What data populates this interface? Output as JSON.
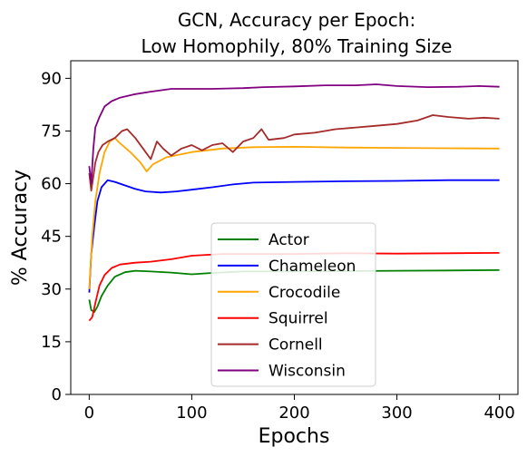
{
  "chart_data": {
    "type": "line",
    "title": "GCN, Accuracy per Epoch:",
    "subtitle": "Low Homophily, 80% Training Size",
    "xlabel": "Epochs",
    "ylabel": "% Accuracy",
    "xlim": [
      -18,
      418
    ],
    "ylim": [
      0,
      95
    ],
    "xticks": [
      0,
      100,
      200,
      300,
      400
    ],
    "yticks": [
      0,
      15,
      30,
      45,
      60,
      75,
      90
    ],
    "grid": false,
    "legend_position": "lower-center",
    "series": [
      {
        "name": "Actor",
        "color": "#008000",
        "points": [
          [
            0,
            27
          ],
          [
            2,
            24
          ],
          [
            5,
            23.5
          ],
          [
            8,
            25
          ],
          [
            12,
            28
          ],
          [
            18,
            31
          ],
          [
            25,
            33.5
          ],
          [
            35,
            34.8
          ],
          [
            45,
            35.2
          ],
          [
            60,
            35
          ],
          [
            80,
            34.7
          ],
          [
            100,
            34.2
          ],
          [
            120,
            34.6
          ],
          [
            150,
            35
          ],
          [
            200,
            35
          ],
          [
            250,
            35.1
          ],
          [
            300,
            35.2
          ],
          [
            350,
            35.3
          ],
          [
            400,
            35.4
          ]
        ]
      },
      {
        "name": "Chameleon",
        "color": "#0000ff",
        "points": [
          [
            0,
            29
          ],
          [
            2,
            40
          ],
          [
            5,
            48
          ],
          [
            8,
            55
          ],
          [
            12,
            59
          ],
          [
            18,
            61
          ],
          [
            25,
            60.5
          ],
          [
            35,
            59.5
          ],
          [
            45,
            58.5
          ],
          [
            55,
            57.8
          ],
          [
            70,
            57.5
          ],
          [
            85,
            57.8
          ],
          [
            100,
            58.3
          ],
          [
            120,
            59
          ],
          [
            140,
            59.8
          ],
          [
            160,
            60.3
          ],
          [
            200,
            60.5
          ],
          [
            250,
            60.7
          ],
          [
            300,
            60.8
          ],
          [
            350,
            61
          ],
          [
            400,
            61
          ]
        ]
      },
      {
        "name": "Crocodile",
        "color": "#ffa500",
        "points": [
          [
            0,
            30
          ],
          [
            3,
            45
          ],
          [
            6,
            55
          ],
          [
            10,
            63
          ],
          [
            15,
            69
          ],
          [
            20,
            72
          ],
          [
            25,
            73
          ],
          [
            30,
            71.5
          ],
          [
            40,
            69
          ],
          [
            50,
            66
          ],
          [
            56,
            63.5
          ],
          [
            62,
            65.5
          ],
          [
            75,
            67.5
          ],
          [
            100,
            69
          ],
          [
            130,
            70
          ],
          [
            160,
            70.4
          ],
          [
            200,
            70.5
          ],
          [
            250,
            70.3
          ],
          [
            300,
            70.2
          ],
          [
            350,
            70.1
          ],
          [
            400,
            70
          ]
        ]
      },
      {
        "name": "Squirrel",
        "color": "#ff0000",
        "points": [
          [
            0,
            21
          ],
          [
            3,
            22
          ],
          [
            6,
            26
          ],
          [
            10,
            31
          ],
          [
            15,
            34
          ],
          [
            22,
            36
          ],
          [
            30,
            37
          ],
          [
            45,
            37.5
          ],
          [
            60,
            37.8
          ],
          [
            80,
            38.5
          ],
          [
            100,
            39.5
          ],
          [
            130,
            40
          ],
          [
            160,
            40
          ],
          [
            200,
            40
          ],
          [
            250,
            40.2
          ],
          [
            300,
            40.1
          ],
          [
            350,
            40.2
          ],
          [
            400,
            40.3
          ]
        ]
      },
      {
        "name": "Cornell",
        "color": "#a52a2a",
        "points": [
          [
            0,
            63
          ],
          [
            2,
            58
          ],
          [
            4,
            62
          ],
          [
            6,
            66
          ],
          [
            9,
            69
          ],
          [
            13,
            71
          ],
          [
            18,
            72
          ],
          [
            25,
            73
          ],
          [
            32,
            75
          ],
          [
            37,
            75.5
          ],
          [
            45,
            73
          ],
          [
            55,
            69
          ],
          [
            60,
            67
          ],
          [
            66,
            72
          ],
          [
            72,
            70
          ],
          [
            80,
            68
          ],
          [
            90,
            70
          ],
          [
            100,
            71
          ],
          [
            110,
            69.5
          ],
          [
            120,
            71
          ],
          [
            130,
            71.5
          ],
          [
            140,
            69
          ],
          [
            150,
            72
          ],
          [
            160,
            73
          ],
          [
            168,
            75.5
          ],
          [
            175,
            72.5
          ],
          [
            190,
            73
          ],
          [
            200,
            74
          ],
          [
            220,
            74.5
          ],
          [
            240,
            75.5
          ],
          [
            260,
            76
          ],
          [
            280,
            76.5
          ],
          [
            300,
            77
          ],
          [
            320,
            78
          ],
          [
            335,
            79.5
          ],
          [
            350,
            79
          ],
          [
            370,
            78.5
          ],
          [
            385,
            78.8
          ],
          [
            400,
            78.5
          ]
        ]
      },
      {
        "name": "Wisconsin",
        "color": "#800080",
        "points": [
          [
            0,
            65
          ],
          [
            2,
            60
          ],
          [
            4,
            70
          ],
          [
            6,
            76
          ],
          [
            10,
            79
          ],
          [
            15,
            82
          ],
          [
            22,
            83.5
          ],
          [
            30,
            84.5
          ],
          [
            45,
            85.5
          ],
          [
            60,
            86.2
          ],
          [
            80,
            87
          ],
          [
            100,
            87
          ],
          [
            120,
            87
          ],
          [
            150,
            87.2
          ],
          [
            170,
            87.5
          ],
          [
            200,
            87.7
          ],
          [
            230,
            88
          ],
          [
            260,
            88
          ],
          [
            280,
            88.3
          ],
          [
            300,
            87.8
          ],
          [
            330,
            87.5
          ],
          [
            360,
            87.6
          ],
          [
            380,
            87.8
          ],
          [
            400,
            87.6
          ]
        ]
      }
    ]
  }
}
